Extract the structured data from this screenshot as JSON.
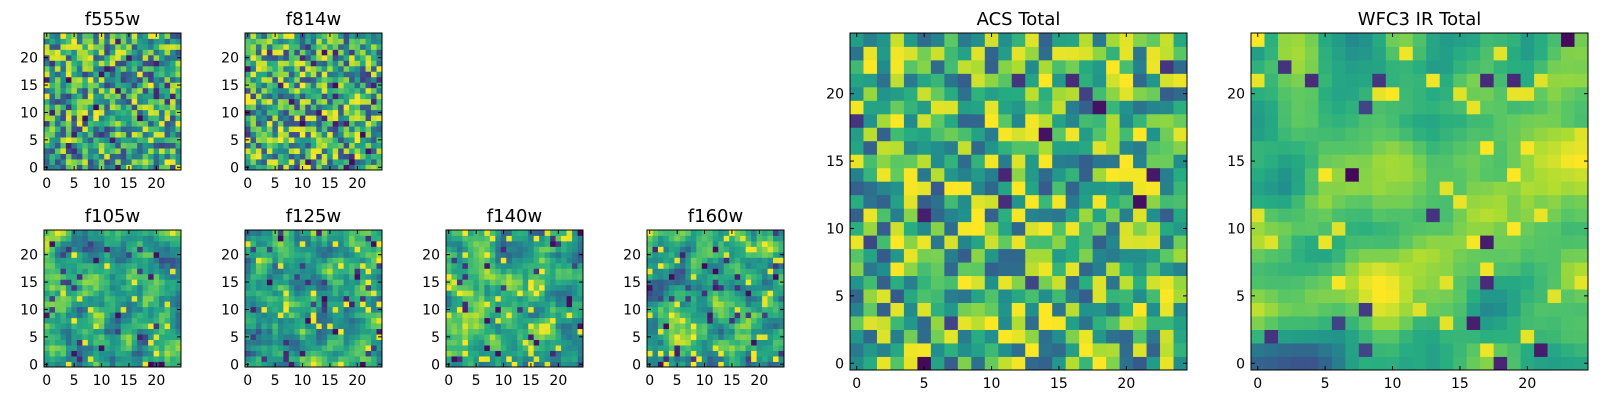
{
  "figure": {
    "grid_size": 25,
    "colormap": [
      "#440154",
      "#472c7a",
      "#3b518b",
      "#2c718e",
      "#21908d",
      "#27ad81",
      "#5cc863",
      "#aadc32",
      "#fde725"
    ]
  },
  "chart_data": [
    {
      "type": "heatmap",
      "title": "f555w",
      "seed": 11,
      "smooth": 0,
      "dark_rate": 0.05,
      "bright_rate": 0.06,
      "bias": 0.58,
      "xlim": [
        0,
        24
      ],
      "ylim": [
        0,
        24
      ],
      "xticks": [
        0,
        5,
        10,
        15,
        20
      ],
      "yticks": [
        0,
        5,
        10,
        15,
        20
      ],
      "xtick_labels": [
        "0",
        "5",
        "10",
        "15",
        "20"
      ],
      "ytick_labels": [
        "0",
        "5",
        "10",
        "15",
        "20"
      ]
    },
    {
      "type": "heatmap",
      "title": "f814w",
      "seed": 23,
      "smooth": 0,
      "dark_rate": 0.05,
      "bright_rate": 0.07,
      "bias": 0.6,
      "xlim": [
        0,
        24
      ],
      "ylim": [
        0,
        24
      ],
      "xticks": [
        0,
        5,
        10,
        15,
        20
      ],
      "yticks": [
        0,
        5,
        10,
        15,
        20
      ],
      "xtick_labels": [
        "0",
        "5",
        "10",
        "15",
        "20"
      ],
      "ytick_labels": [
        "0",
        "5",
        "10",
        "15",
        "20"
      ]
    },
    {
      "type": "heatmap",
      "title": "f105w",
      "seed": 37,
      "smooth": 1,
      "dark_rate": 0.04,
      "bright_rate": 0.05,
      "bias": 0.6,
      "xlim": [
        0,
        24
      ],
      "ylim": [
        0,
        24
      ],
      "xticks": [
        0,
        5,
        10,
        15,
        20
      ],
      "yticks": [
        0,
        5,
        10,
        15,
        20
      ],
      "xtick_labels": [
        "0",
        "5",
        "10",
        "15",
        "20"
      ],
      "ytick_labels": [
        "0",
        "5",
        "10",
        "15",
        "20"
      ]
    },
    {
      "type": "heatmap",
      "title": "f125w",
      "seed": 41,
      "smooth": 1,
      "dark_rate": 0.05,
      "bright_rate": 0.05,
      "bias": 0.62,
      "xlim": [
        0,
        24
      ],
      "ylim": [
        0,
        24
      ],
      "xticks": [
        0,
        5,
        10,
        15,
        20
      ],
      "yticks": [
        0,
        5,
        10,
        15,
        20
      ],
      "xtick_labels": [
        "0",
        "5",
        "10",
        "15",
        "20"
      ],
      "ytick_labels": [
        "0",
        "5",
        "10",
        "15",
        "20"
      ]
    },
    {
      "type": "heatmap",
      "title": "f140w",
      "seed": 53,
      "smooth": 1,
      "dark_rate": 0.05,
      "bright_rate": 0.06,
      "bias": 0.6,
      "xlim": [
        0,
        24
      ],
      "ylim": [
        0,
        24
      ],
      "xticks": [
        0,
        5,
        10,
        15,
        20
      ],
      "yticks": [
        0,
        5,
        10,
        15,
        20
      ],
      "xtick_labels": [
        "0",
        "5",
        "10",
        "15",
        "20"
      ],
      "ytick_labels": [
        "0",
        "5",
        "10",
        "15",
        "20"
      ]
    },
    {
      "type": "heatmap",
      "title": "f160w",
      "seed": 67,
      "smooth": 1,
      "dark_rate": 0.06,
      "bright_rate": 0.06,
      "bias": 0.58,
      "xlim": [
        0,
        24
      ],
      "ylim": [
        0,
        24
      ],
      "xticks": [
        0,
        5,
        10,
        15,
        20
      ],
      "yticks": [
        0,
        5,
        10,
        15,
        20
      ],
      "xtick_labels": [
        "0",
        "5",
        "10",
        "15",
        "20"
      ],
      "ytick_labels": [
        "0",
        "5",
        "10",
        "15",
        "20"
      ]
    },
    {
      "type": "heatmap",
      "title": "ACS Total",
      "seed": 79,
      "smooth": 0,
      "dark_rate": 0.025,
      "bright_rate": 0.08,
      "bias": 0.66,
      "xlim": [
        0,
        24
      ],
      "ylim": [
        0,
        24
      ],
      "xticks": [
        0,
        5,
        10,
        15,
        20
      ],
      "yticks": [
        0,
        5,
        10,
        15,
        20
      ],
      "xtick_labels": [
        "0",
        "5",
        "10",
        "15",
        "20"
      ],
      "ytick_labels": [
        "0",
        "5",
        "10",
        "15",
        "20"
      ]
    },
    {
      "type": "heatmap",
      "title": "WFC3 IR Total",
      "seed": 97,
      "smooth": 2,
      "dark_rate": 0.02,
      "bright_rate": 0.05,
      "bias": 0.64,
      "xlim": [
        0,
        24
      ],
      "ylim": [
        0,
        24
      ],
      "xticks": [
        0,
        5,
        10,
        15,
        20
      ],
      "yticks": [
        0,
        5,
        10,
        15,
        20
      ],
      "xtick_labels": [
        "0",
        "5",
        "10",
        "15",
        "20"
      ],
      "ytick_labels": [
        "0",
        "5",
        "10",
        "15",
        "20"
      ]
    }
  ]
}
